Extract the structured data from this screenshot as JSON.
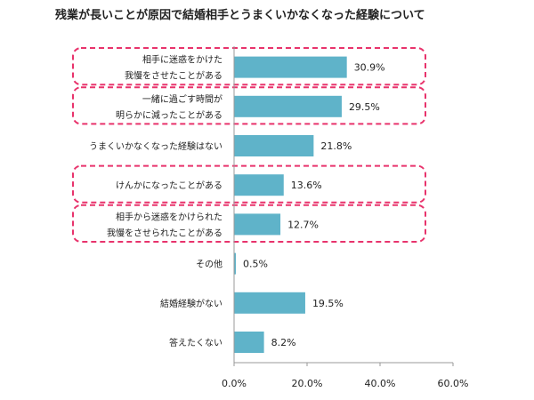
{
  "chart_data": {
    "type": "bar",
    "orientation": "horizontal",
    "title": "残業が長いことが原因で結婚相手とうまくいかなくなった経験について",
    "categories": [
      [
        "相手に迷惑をかけた",
        "我慢をさせたことがある"
      ],
      [
        "一緒に過ごす時間が",
        "明らかに減ったことがある"
      ],
      [
        "うまくいかなくなった経験はない"
      ],
      [
        "けんかになったことがある"
      ],
      [
        "相手から迷惑をかけられた",
        "我慢をさせられたことがある"
      ],
      [
        "その他"
      ],
      [
        "結婚経験がない"
      ],
      [
        "答えたくない"
      ]
    ],
    "values": [
      30.9,
      29.5,
      21.8,
      13.6,
      12.7,
      0.5,
      19.5,
      8.2
    ],
    "value_labels": [
      "30.9%",
      "29.5%",
      "21.8%",
      "13.6%",
      "12.7%",
      "0.5%",
      "19.5%",
      "8.2%"
    ],
    "xlim": [
      0,
      60
    ],
    "x_ticks": [
      "0.0%",
      "20.0%",
      "40.0%",
      "60.0%"
    ],
    "highlighted_categories": [
      0,
      1,
      3,
      4
    ],
    "colors": {
      "bar": "#5fb3c9",
      "highlight_border": "#e8336c",
      "axis": "#999999",
      "text": "#222222"
    },
    "grid": false
  }
}
